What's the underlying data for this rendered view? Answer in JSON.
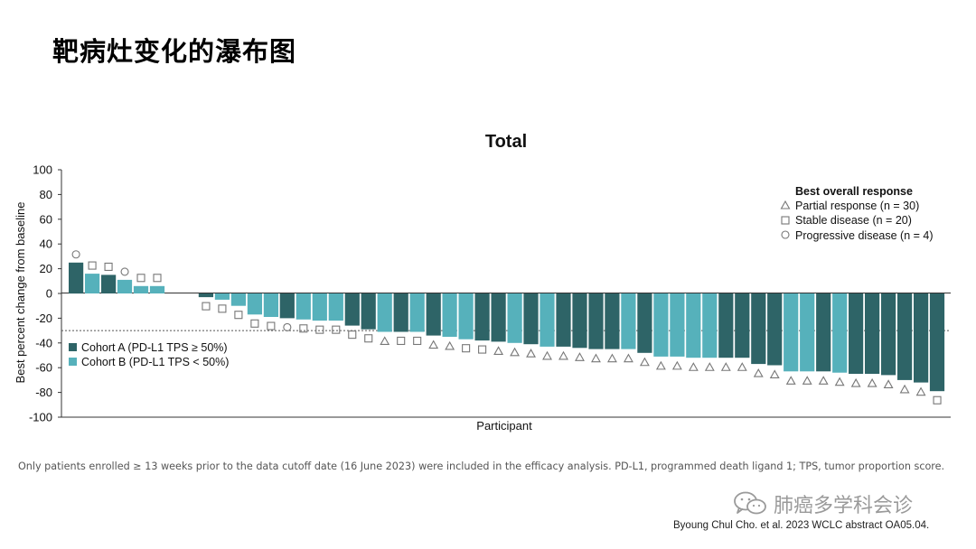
{
  "slide_title": "靶病灶变化的瀑布图",
  "footnote": "Only patients enrolled ≥  13 weeks prior to the data cutoff date (16 June 2023) were included in the efficacy analysis. PD-L1, programmed death ligand 1; TPS, tumor proportion score.",
  "watermark": {
    "icon": "wechat-icon",
    "text": "肺癌多学科会诊"
  },
  "citation": "Byoung Chul Cho. et al. 2023 WCLC abstract OA05.04.",
  "colors": {
    "cohort_a": "#2e6467",
    "cohort_b": "#56b1bb",
    "axis": "#333333",
    "reference_line": "#555555",
    "marker": "#777777"
  },
  "chart_data": {
    "type": "bar",
    "title": "Total",
    "xlabel": "Participant",
    "ylabel": "Best percent change from baseline",
    "ylim": [
      -100,
      100
    ],
    "yticks": [
      100,
      80,
      60,
      40,
      20,
      0,
      -20,
      -40,
      -60,
      -80,
      -100
    ],
    "reference_line": -30,
    "grid": false,
    "legend_response": {
      "title": "Best overall response",
      "placement": "top-right",
      "items": [
        {
          "marker": "triangle",
          "label": "Partial response (n = 30)"
        },
        {
          "marker": "square",
          "label": "Stable disease (n = 20)"
        },
        {
          "marker": "circle",
          "label": "Progressive disease (n = 4)"
        }
      ]
    },
    "legend_cohort": {
      "placement": "left",
      "items": [
        {
          "key": "A",
          "label": "Cohort A (PD-L1 TPS ≥ 50%)"
        },
        {
          "key": "B",
          "label": "Cohort B (PD-L1 TPS < 50%)"
        }
      ]
    },
    "bars": [
      {
        "value": 25,
        "cohort": "A",
        "response": "PD"
      },
      {
        "value": 16,
        "cohort": "B",
        "response": "SD"
      },
      {
        "value": 15,
        "cohort": "A",
        "response": "SD"
      },
      {
        "value": 11,
        "cohort": "B",
        "response": "PD"
      },
      {
        "value": 6,
        "cohort": "B",
        "response": "SD"
      },
      {
        "value": 6,
        "cohort": "B",
        "response": "SD"
      },
      {
        "value": 0,
        "cohort": "B",
        "response": null
      },
      {
        "value": 0,
        "cohort": "B",
        "response": null
      },
      {
        "value": -3,
        "cohort": "A",
        "response": "SD"
      },
      {
        "value": -5,
        "cohort": "B",
        "response": "SD"
      },
      {
        "value": -10,
        "cohort": "B",
        "response": "SD"
      },
      {
        "value": -17,
        "cohort": "B",
        "response": "SD"
      },
      {
        "value": -19,
        "cohort": "B",
        "response": "SD"
      },
      {
        "value": -20,
        "cohort": "A",
        "response": "PD"
      },
      {
        "value": -21,
        "cohort": "B",
        "response": "SD"
      },
      {
        "value": -22,
        "cohort": "B",
        "response": "SD"
      },
      {
        "value": -22,
        "cohort": "B",
        "response": "SD"
      },
      {
        "value": -26,
        "cohort": "A",
        "response": "SD"
      },
      {
        "value": -29,
        "cohort": "A",
        "response": "SD"
      },
      {
        "value": -31,
        "cohort": "B",
        "response": "PR"
      },
      {
        "value": -31,
        "cohort": "A",
        "response": "SD"
      },
      {
        "value": -31,
        "cohort": "B",
        "response": "SD"
      },
      {
        "value": -34,
        "cohort": "A",
        "response": "PR"
      },
      {
        "value": -35,
        "cohort": "B",
        "response": "PR"
      },
      {
        "value": -37,
        "cohort": "B",
        "response": "SD"
      },
      {
        "value": -38,
        "cohort": "A",
        "response": "SD"
      },
      {
        "value": -39,
        "cohort": "A",
        "response": "PR"
      },
      {
        "value": -40,
        "cohort": "B",
        "response": "PR"
      },
      {
        "value": -41,
        "cohort": "A",
        "response": "PR"
      },
      {
        "value": -43,
        "cohort": "B",
        "response": "PR"
      },
      {
        "value": -43,
        "cohort": "A",
        "response": "PR"
      },
      {
        "value": -44,
        "cohort": "A",
        "response": "PR"
      },
      {
        "value": -45,
        "cohort": "A",
        "response": "PR"
      },
      {
        "value": -45,
        "cohort": "A",
        "response": "PR"
      },
      {
        "value": -45,
        "cohort": "B",
        "response": "PR"
      },
      {
        "value": -48,
        "cohort": "A",
        "response": "PR"
      },
      {
        "value": -51,
        "cohort": "B",
        "response": "PR"
      },
      {
        "value": -51,
        "cohort": "B",
        "response": "PR"
      },
      {
        "value": -52,
        "cohort": "B",
        "response": "PR"
      },
      {
        "value": -52,
        "cohort": "B",
        "response": "PR"
      },
      {
        "value": -52,
        "cohort": "A",
        "response": "PR"
      },
      {
        "value": -52,
        "cohort": "A",
        "response": "PR"
      },
      {
        "value": -57,
        "cohort": "A",
        "response": "PR"
      },
      {
        "value": -58,
        "cohort": "A",
        "response": "PR"
      },
      {
        "value": -63,
        "cohort": "B",
        "response": "PR"
      },
      {
        "value": -63,
        "cohort": "B",
        "response": "PR"
      },
      {
        "value": -63,
        "cohort": "A",
        "response": "PR"
      },
      {
        "value": -64,
        "cohort": "B",
        "response": "PR"
      },
      {
        "value": -65,
        "cohort": "A",
        "response": "PR"
      },
      {
        "value": -65,
        "cohort": "A",
        "response": "PR"
      },
      {
        "value": -66,
        "cohort": "A",
        "response": "PR"
      },
      {
        "value": -70,
        "cohort": "A",
        "response": "PR"
      },
      {
        "value": -72,
        "cohort": "A",
        "response": "PR"
      },
      {
        "value": -79,
        "cohort": "A",
        "response": "SD"
      }
    ]
  }
}
